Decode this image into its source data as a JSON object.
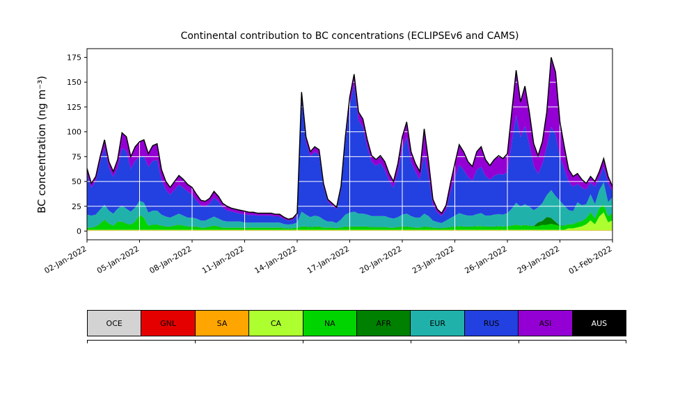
{
  "title": "Continental contribution to BC concentrations (ECLIPSEv6 and CAMS)",
  "chart_data": {
    "type": "area",
    "stacked": true,
    "title": "Continental contribution to BC concentrations (ECLIPSEv6 and CAMS)",
    "xlabel": "",
    "ylabel": "BC concentration (ng m⁻³)",
    "grid": "on",
    "grid_color": "#ffffff",
    "outline_color": "#000000",
    "legend_position": "bottom",
    "x_unit": "days since 02-Jan-2022, 4 samples per day",
    "x_range": [
      0,
      30
    ],
    "points_per_day": 4,
    "xticks": [
      0,
      3,
      6,
      9,
      12,
      15,
      18,
      21,
      24,
      27,
      30
    ],
    "xticklabels": [
      "02-Jan-2022",
      "05-Jan-2022",
      "08-Jan-2022",
      "11-Jan-2022",
      "14-Jan-2022",
      "17-Jan-2022",
      "20-Jan-2022",
      "23-Jan-2022",
      "26-Jan-2022",
      "29-Jan-2022",
      "01-Feb-2022"
    ],
    "yticks": [
      0,
      25,
      50,
      75,
      100,
      125,
      150,
      175
    ],
    "ylim": [
      -8.75,
      183.75
    ],
    "legend_axis_ticks": [
      0,
      0.2,
      0.4,
      0.6,
      0.8,
      1.0
    ],
    "series": [
      {
        "name": "OCE",
        "color": "#d3d3d3",
        "text_color": "#000000",
        "constant": 0.3
      },
      {
        "name": "GNL",
        "color": "#e50000",
        "text_color": "#000000",
        "constant": 0.2
      },
      {
        "name": "SA",
        "color": "#ffa500",
        "text_color": "#000000",
        "constant": 0.3
      },
      {
        "name": "CA",
        "color": "#adff2f",
        "text_color": "#000000",
        "values": [
          0.5,
          0.5,
          0.5,
          0.5,
          0.5,
          0.5,
          0.5,
          0.5,
          0.5,
          0.5,
          0.5,
          0.5,
          0.5,
          0.5,
          0.5,
          0.5,
          0.5,
          0.5,
          0.5,
          0.5,
          0.5,
          0.5,
          0.5,
          0.5,
          0.5,
          0.5,
          0.5,
          0.5,
          0.5,
          0.5,
          0.5,
          0.5,
          0.5,
          0.5,
          0.5,
          0.5,
          0.5,
          0.5,
          0.5,
          0.5,
          0.5,
          0.5,
          0.5,
          0.5,
          0.5,
          0.5,
          0.5,
          0.5,
          0.5,
          0.5,
          0.5,
          0.5,
          0.5,
          0.5,
          0.5,
          0.5,
          0.5,
          0.5,
          0.5,
          0.5,
          0.5,
          0.5,
          0.5,
          0.5,
          0.5,
          0.5,
          0.5,
          0.5,
          0.5,
          0.5,
          0.5,
          0.5,
          0.5,
          0.5,
          0.5,
          0.5,
          0.5,
          0.5,
          0.5,
          0.5,
          0.5,
          0.5,
          0.5,
          0.5,
          0.5,
          0.5,
          0.5,
          0.5,
          0.5,
          0.5,
          0.5,
          0.5,
          0.5,
          0.5,
          0.5,
          0.5,
          0.5,
          0.5,
          0.5,
          0.5,
          0.5,
          0.5,
          0.5,
          0.5,
          0.5,
          0.5,
          0.5,
          0.5,
          0.5,
          0.5,
          2,
          2,
          3,
          4,
          6,
          10,
          6,
          14,
          18,
          8,
          10
        ]
      },
      {
        "name": "NA",
        "color": "#00d400",
        "text_color": "#000000",
        "values": [
          2,
          2,
          3,
          6,
          10,
          6,
          4,
          8,
          8,
          6,
          5,
          8,
          15,
          12,
          4,
          5,
          5,
          4,
          3,
          3,
          4,
          5,
          4,
          3,
          3,
          3,
          2,
          2,
          3,
          4,
          3,
          2,
          2,
          2,
          2,
          2,
          2,
          2,
          2,
          2,
          2,
          2,
          2,
          2,
          2,
          1.5,
          1,
          1.5,
          2,
          3,
          3,
          2.5,
          3,
          3,
          2,
          2,
          2,
          1.5,
          2,
          3,
          3,
          3,
          3,
          3,
          3,
          2.5,
          2.5,
          2.5,
          2.5,
          2,
          2,
          2.5,
          3,
          3,
          2.5,
          2,
          2,
          3,
          2.5,
          2,
          1.5,
          1.5,
          2,
          2.5,
          3,
          3.5,
          3,
          3,
          3,
          3.5,
          3.5,
          3,
          3,
          3,
          3.5,
          3,
          3.5,
          4,
          5,
          4,
          4.5,
          4,
          3.5,
          3.5,
          5,
          5,
          6,
          5,
          4,
          4,
          4,
          4,
          5,
          5,
          6,
          8,
          6,
          8,
          8,
          6,
          7
        ]
      },
      {
        "name": "AFR",
        "color": "#008000",
        "text_color": "#000000",
        "values": [
          0.3,
          0.3,
          0.3,
          0.3,
          0.3,
          0.3,
          0.3,
          0.3,
          0.3,
          0.3,
          0.3,
          0.3,
          0.3,
          0.3,
          0.3,
          0.3,
          0.3,
          0.3,
          0.3,
          0.3,
          0.3,
          0.3,
          0.3,
          0.3,
          0.3,
          0.3,
          0.3,
          0.3,
          0.3,
          0.3,
          0.3,
          0.3,
          0.3,
          0.3,
          0.3,
          0.3,
          0.3,
          0.3,
          0.3,
          0.3,
          0.3,
          0.3,
          0.3,
          0.3,
          0.3,
          0.3,
          0.3,
          0.3,
          0.3,
          0.3,
          0.3,
          0.3,
          0.3,
          0.3,
          0.3,
          0.3,
          0.3,
          0.3,
          0.3,
          0.3,
          0.3,
          0.3,
          0.3,
          0.3,
          0.3,
          0.3,
          0.3,
          0.3,
          0.3,
          0.3,
          0.3,
          0.3,
          0.3,
          0.3,
          0.3,
          0.3,
          0.3,
          0.3,
          0.3,
          0.3,
          0.3,
          0.3,
          0.3,
          0.3,
          0.3,
          0.3,
          0.3,
          0.3,
          0.3,
          0.3,
          0.3,
          0.3,
          0.3,
          0.3,
          0.3,
          0.3,
          0.3,
          0.3,
          0.3,
          0.3,
          0.3,
          0.3,
          0.3,
          4,
          4,
          8,
          6,
          3,
          0.3,
          0.3,
          0.3,
          0.3,
          0.3,
          0.3,
          0.3,
          0.3,
          0.3,
          0.3,
          0.3,
          0.3,
          0.3
        ]
      },
      {
        "name": "EUR",
        "color": "#20b2aa",
        "text_color": "#000000",
        "values": [
          13,
          12,
          12,
          14,
          15,
          13,
          12,
          13,
          16,
          15,
          13,
          14,
          14,
          15,
          13,
          14,
          14,
          11,
          10,
          9,
          10,
          11,
          10,
          9,
          9,
          8,
          7,
          7,
          8,
          9,
          8,
          7,
          6,
          6,
          6,
          6,
          5,
          5,
          5,
          5,
          5,
          5,
          5,
          5,
          5,
          4,
          4,
          4,
          5,
          15,
          12,
          10,
          11,
          10,
          8,
          6,
          6,
          5,
          8,
          12,
          14,
          15,
          13,
          13,
          12,
          11,
          11,
          11,
          11,
          10,
          9,
          10,
          12,
          13,
          11,
          10,
          10,
          13,
          11,
          7,
          6,
          5,
          7,
          9,
          11,
          13,
          12,
          11,
          11,
          12,
          13,
          11,
          11,
          12,
          12,
          12,
          13,
          17,
          22,
          19,
          21,
          19,
          16,
          15,
          18,
          22,
          28,
          26,
          25,
          20,
          14,
          13,
          20,
          16,
          14,
          18,
          14,
          18,
          22,
          14,
          16
        ]
      },
      {
        "name": "RUS",
        "color": "#2340e0",
        "text_color": "#000000",
        "values": [
          41.1,
          28.1,
          34.1,
          48.1,
          57.1,
          43.1,
          37.1,
          41.1,
          58.1,
          58.1,
          43.1,
          47.1,
          44.1,
          47.1,
          46.1,
          50.1,
          51.1,
          35.1,
          27.1,
          23.1,
          26.1,
          29.1,
          28.1,
          26.1,
          23.1,
          18.1,
          15.1,
          14.1,
          15.1,
          19.1,
          17.1,
          13.1,
          11.1,
          10.1,
          9.1,
          8.1,
          8.1,
          7.6,
          7.6,
          7.1,
          7.1,
          7.1,
          7.1,
          6.1,
          6.1,
          5.1,
          4.1,
          4.1,
          7.1,
          114.1,
          73.1,
          61.6,
          64.1,
          62.1,
          33.1,
          20.1,
          16.1,
          14.1,
          30.1,
          72.1,
          108.1,
          128.1,
          94.1,
          87.1,
          68.1,
          54.6,
          50.6,
          53.6,
          46.6,
          37.1,
          31.1,
          45.6,
          66.1,
          77.1,
          54.6,
          46.1,
          38.1,
          60.1,
          39.6,
          16.1,
          9.6,
          7.1,
          11.1,
          26.6,
          38.1,
          48.6,
          45.1,
          39.1,
          35.1,
          44.6,
          46.6,
          40.1,
          36.1,
          39.1,
          40.6,
          40.1,
          41.6,
          67.1,
          88.1,
          70.1,
          78.6,
          63.1,
          44.6,
          33.9,
          39.4,
          48.4,
          63.4,
          62.4,
          44.1,
          37.1,
          28.6,
          24.6,
          18.6,
          17.6,
          14.6,
          11.6,
          17.6,
          12.6,
          15.6,
          19.6,
          5.6
        ]
      },
      {
        "name": "ASI",
        "color": "#9400d3",
        "text_color": "#000000",
        "values": [
          5,
          4,
          4,
          5,
          8,
          6,
          5,
          8,
          15,
          14,
          12,
          14,
          15,
          16,
          13,
          15,
          16,
          10,
          8,
          7,
          8,
          9,
          8,
          7,
          7,
          6,
          5,
          5,
          5,
          6,
          5,
          4,
          4,
          3,
          3,
          3,
          3,
          2.5,
          2.5,
          2,
          2,
          2,
          2,
          2,
          2,
          1.5,
          1,
          1.5,
          2,
          6,
          5,
          4,
          5,
          5,
          3,
          2,
          2,
          1.5,
          3,
          6,
          8,
          10,
          8,
          8,
          7,
          6,
          6,
          7,
          8,
          7,
          6,
          8,
          12,
          15,
          10,
          8,
          8,
          25,
          15,
          5,
          3,
          2.5,
          4,
          8,
          14,
          20,
          18,
          15,
          14,
          18,
          20,
          16,
          14,
          16,
          18,
          16,
          18,
          30,
          45,
          35,
          40,
          32,
          22,
          18,
          22,
          35,
          70,
          62,
          35,
          22,
          12,
          10,
          10,
          8,
          6,
          6,
          5,
          6,
          8,
          6,
          5
        ]
      },
      {
        "name": "AUS",
        "color": "#000000",
        "text_color": "#ffffff",
        "constant": 0.3
      }
    ]
  }
}
